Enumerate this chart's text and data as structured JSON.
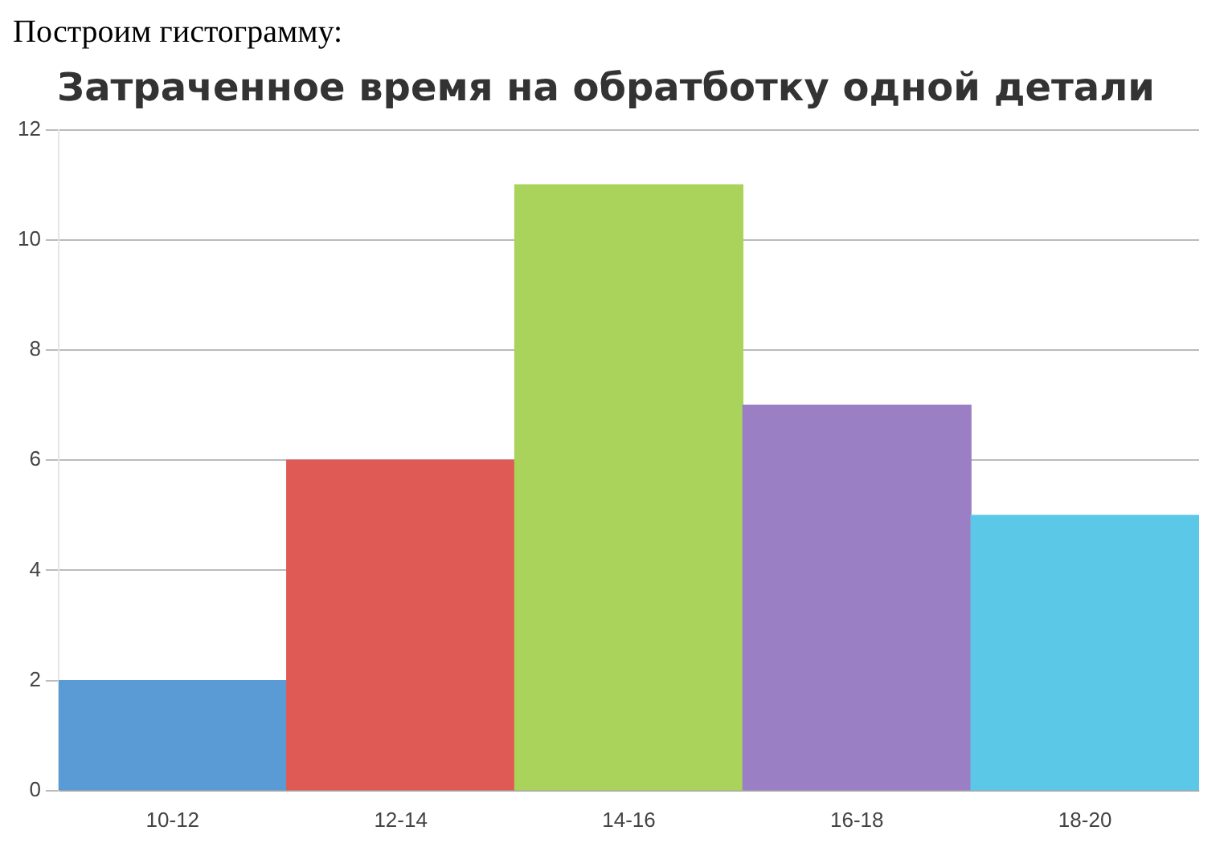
{
  "chart_data": {
    "type": "bar",
    "title": "Затраченное время на обратботку одной детали",
    "annotations": [
      "Построим гистограмму:"
    ],
    "categories": [
      "10-12",
      "12-14",
      "14-16",
      "16-18",
      "18-20"
    ],
    "values": [
      2,
      6,
      11,
      7,
      5
    ],
    "colors": [
      "#5b9bd5",
      "#e05a55",
      "#a9d35a",
      "#9b7fc4",
      "#5bc8e8"
    ],
    "ylim": [
      0,
      12
    ],
    "yticks": [
      0,
      2,
      4,
      6,
      8,
      10,
      12
    ],
    "grid": "y"
  }
}
